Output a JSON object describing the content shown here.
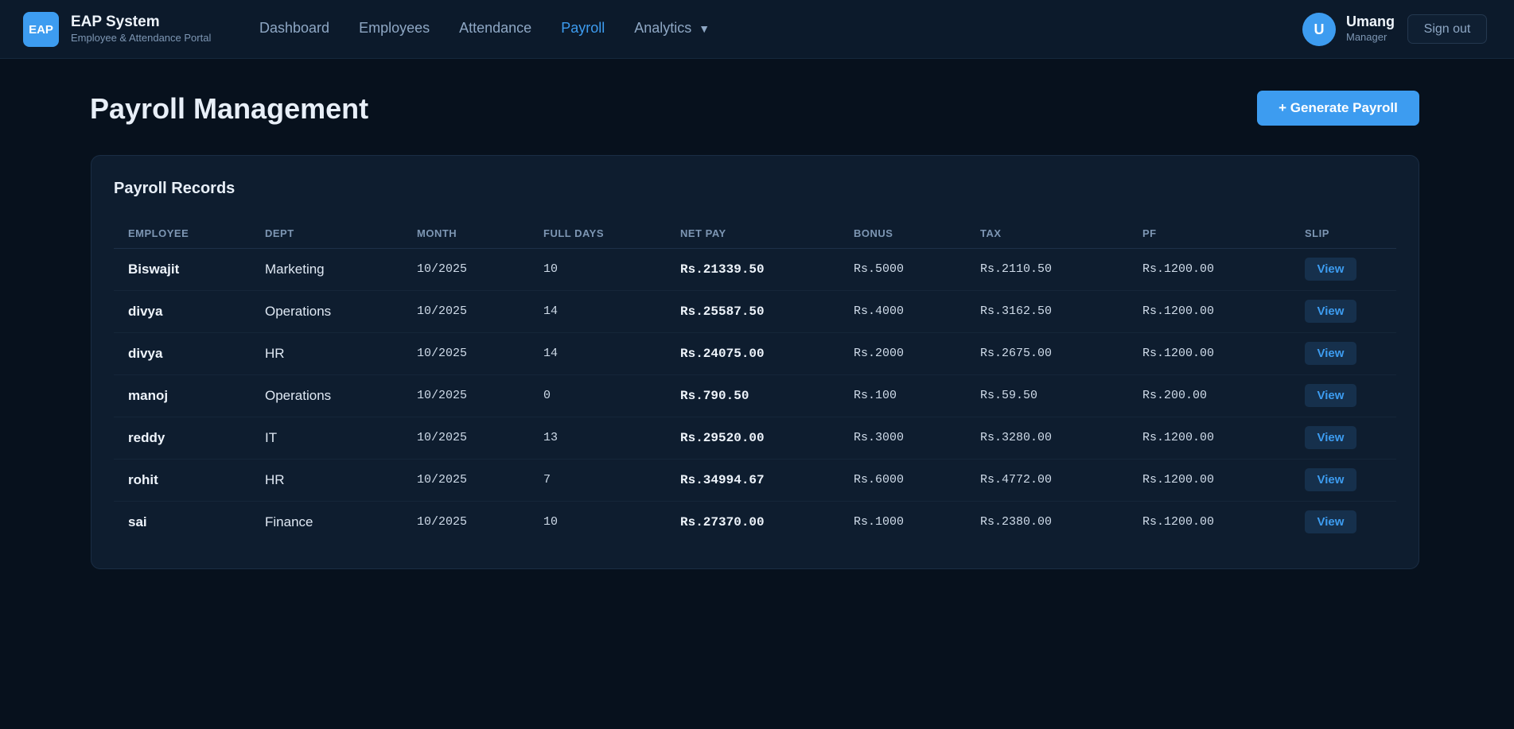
{
  "brand": {
    "logo_text": "EAP",
    "name": "EAP System",
    "subtitle": "Employee & Attendance Portal"
  },
  "nav": {
    "items": [
      {
        "label": "Dashboard"
      },
      {
        "label": "Employees"
      },
      {
        "label": "Attendance"
      },
      {
        "label": "Payroll",
        "active": true
      },
      {
        "label": "Analytics",
        "caret": "▼"
      }
    ]
  },
  "user": {
    "avatar_initial": "U",
    "name": "Umang",
    "role": "Manager",
    "signout_label": "Sign out"
  },
  "page": {
    "title": "Payroll Management",
    "generate_label": "+ Generate Payroll"
  },
  "payroll": {
    "card_title": "Payroll Records",
    "columns": [
      "EMPLOYEE",
      "DEPT",
      "MONTH",
      "FULL DAYS",
      "NET PAY",
      "BONUS",
      "TAX",
      "PF",
      "SLIP"
    ],
    "rows": [
      {
        "employee": "Biswajit",
        "dept": "Marketing",
        "month": "10/2025",
        "full_days": "10",
        "net_pay": "Rs.21339.50",
        "bonus": "Rs.5000",
        "tax": "Rs.2110.50",
        "pf": "Rs.1200.00",
        "slip": "View"
      },
      {
        "employee": "divya",
        "dept": "Operations",
        "month": "10/2025",
        "full_days": "14",
        "net_pay": "Rs.25587.50",
        "bonus": "Rs.4000",
        "tax": "Rs.3162.50",
        "pf": "Rs.1200.00",
        "slip": "View"
      },
      {
        "employee": "divya",
        "dept": "HR",
        "month": "10/2025",
        "full_days": "14",
        "net_pay": "Rs.24075.00",
        "bonus": "Rs.2000",
        "tax": "Rs.2675.00",
        "pf": "Rs.1200.00",
        "slip": "View"
      },
      {
        "employee": "manoj",
        "dept": "Operations",
        "month": "10/2025",
        "full_days": "0",
        "net_pay": "Rs.790.50",
        "bonus": "Rs.100",
        "tax": "Rs.59.50",
        "pf": "Rs.200.00",
        "slip": "View"
      },
      {
        "employee": "reddy",
        "dept": "IT",
        "month": "10/2025",
        "full_days": "13",
        "net_pay": "Rs.29520.00",
        "bonus": "Rs.3000",
        "tax": "Rs.3280.00",
        "pf": "Rs.1200.00",
        "slip": "View"
      },
      {
        "employee": "rohit",
        "dept": "HR",
        "month": "10/2025",
        "full_days": "7",
        "net_pay": "Rs.34994.67",
        "bonus": "Rs.6000",
        "tax": "Rs.4772.00",
        "pf": "Rs.1200.00",
        "slip": "View"
      },
      {
        "employee": "sai",
        "dept": "Finance",
        "month": "10/2025",
        "full_days": "10",
        "net_pay": "Rs.27370.00",
        "bonus": "Rs.1000",
        "tax": "Rs.2380.00",
        "pf": "Rs.1200.00",
        "slip": "View"
      }
    ]
  },
  "colors": {
    "accent": "#3d9cf0",
    "background": "#07111d",
    "navbar": "#0c1a2b",
    "card": "#0e1d2f"
  }
}
